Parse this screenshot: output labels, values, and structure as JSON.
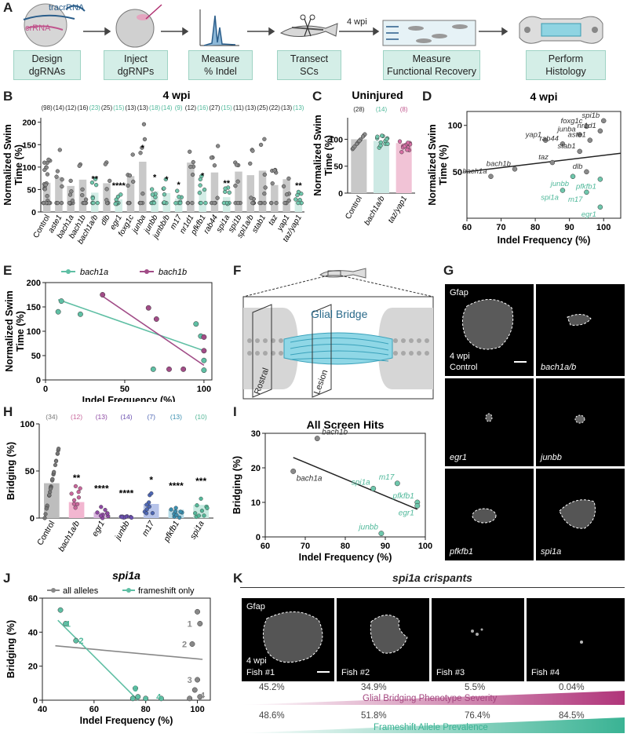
{
  "panel_letters": [
    "A",
    "B",
    "C",
    "D",
    "E",
    "F",
    "G",
    "H",
    "I",
    "J",
    "K"
  ],
  "panelA": {
    "steps": [
      {
        "label": "Design\ndgRNAs"
      },
      {
        "label": "Inject\ndgRNPs"
      },
      {
        "label": "Measure\n% Indel"
      },
      {
        "label": "Transect\nSCs"
      },
      {
        "label": "Measure\nFunctional Recovery"
      },
      {
        "label": "Perform\nHistology"
      }
    ],
    "tracr_label": "tracrRNA",
    "crrna_label": "crRNA",
    "wpi_label": "4 wpi"
  },
  "chart_data": [
    {
      "id": "B",
      "type": "bar",
      "title": "4 wpi",
      "ylabel": "Normalized Swim\nTime (%)",
      "ylim": [
        0,
        210
      ],
      "yticks": [
        0,
        50,
        100,
        150,
        200
      ],
      "categories": [
        "Control",
        "aste1",
        "bach1a",
        "bach1b",
        "bach1a/b",
        "dlb",
        "egr1",
        "foxg1c",
        "junba",
        "junbb",
        "junbb/b",
        "m17",
        "nr1d1",
        "pfkfb1",
        "rab44",
        "spi1a",
        "spi1b",
        "spi1a/b",
        "stab1",
        "taz",
        "yap1",
        "taz/yap1"
      ],
      "values": [
        65,
        78,
        58,
        72,
        43,
        64,
        28,
        80,
        112,
        46,
        42,
        30,
        110,
        50,
        88,
        33,
        90,
        82,
        92,
        60,
        73,
        28
      ],
      "n": [
        "(98)",
        "(14)",
        "(12)",
        "(16)",
        "(23)",
        "(25)",
        "(15)",
        "(13)",
        "(13)",
        "(18)",
        "(14)",
        "(9)",
        "(12)",
        "(16)",
        "(27)",
        "(15)",
        "(11)",
        "(13)",
        "(25)",
        "(22)",
        "(13)",
        "(13)"
      ],
      "sig": [
        "",
        "",
        "",
        "",
        "**",
        "",
        "****",
        "",
        "*",
        "*",
        "*",
        "*",
        "",
        "*",
        "",
        "**",
        "",
        "",
        "",
        "",
        "",
        "**"
      ],
      "highlight": [
        false,
        false,
        false,
        false,
        true,
        false,
        true,
        false,
        false,
        true,
        true,
        true,
        false,
        true,
        false,
        true,
        false,
        false,
        false,
        false,
        false,
        true
      ]
    },
    {
      "id": "C",
      "type": "bar",
      "title": "Uninjured",
      "ylabel": "Normalized Swim\nTime (%)",
      "ylim": [
        0,
        140
      ],
      "yticks": [
        0,
        50,
        100
      ],
      "categories": [
        "Control",
        "bach1a/b",
        "taz/yap1"
      ],
      "values": [
        100,
        97,
        93
      ],
      "n": [
        "(28)",
        "(14)",
        "(8)"
      ],
      "colors": [
        "#c8c8c8",
        "#cde9e4",
        "#f1c3d6"
      ]
    },
    {
      "id": "D",
      "type": "scatter",
      "title": "4 wpi",
      "xlabel": "Indel Frequency (%)",
      "ylabel": "Normalized Swim\nTime (%)",
      "xlim": [
        60,
        105
      ],
      "ylim": [
        0,
        115
      ],
      "xticks": [
        60,
        70,
        80,
        90,
        100
      ],
      "yticks": [
        50,
        100
      ],
      "points": [
        {
          "label": "spi1b",
          "x": 100,
          "y": 105,
          "hit": false
        },
        {
          "label": "foxg1c",
          "x": 95,
          "y": 99,
          "hit": false
        },
        {
          "label": "nr1d1",
          "x": 99,
          "y": 94,
          "hit": false
        },
        {
          "label": "junba",
          "x": 93,
          "y": 90,
          "hit": false
        },
        {
          "label": "aste1",
          "x": 96,
          "y": 84,
          "hit": false
        },
        {
          "label": "yap1",
          "x": 83,
          "y": 84,
          "hit": false
        },
        {
          "label": "rab44",
          "x": 88,
          "y": 80,
          "hit": false
        },
        {
          "label": "stab1",
          "x": 93,
          "y": 72,
          "hit": false
        },
        {
          "label": "taz",
          "x": 85,
          "y": 60,
          "hit": false
        },
        {
          "label": "bach1b",
          "x": 74,
          "y": 53,
          "hit": false
        },
        {
          "label": "bach1a",
          "x": 67,
          "y": 45,
          "hit": false
        },
        {
          "label": "dlb",
          "x": 95,
          "y": 50,
          "hit": false
        },
        {
          "label": "junbb",
          "x": 91,
          "y": 45,
          "hit": true
        },
        {
          "label": "pfkfb1",
          "x": 99,
          "y": 42,
          "hit": true
        },
        {
          "label": "spi1a",
          "x": 88,
          "y": 30,
          "hit": true
        },
        {
          "label": "m17",
          "x": 95,
          "y": 28,
          "hit": true
        },
        {
          "label": "egr1",
          "x": 99,
          "y": 12,
          "hit": true
        }
      ],
      "fit": [
        [
          60,
          50
        ],
        [
          105,
          70
        ]
      ]
    },
    {
      "id": "E",
      "type": "scatter",
      "xlabel": "Indel Frequency (%)",
      "ylabel": "Normalized Swim\nTime (%)",
      "xlim": [
        0,
        105
      ],
      "ylim": [
        0,
        200
      ],
      "xticks": [
        0,
        50,
        100
      ],
      "yticks": [
        0,
        50,
        100,
        150,
        200
      ],
      "series": [
        {
          "name": "bach1a",
          "color": "#5fbfa4",
          "points": [
            [
              8,
              140
            ],
            [
              10,
              162
            ],
            [
              22,
              135
            ],
            [
              68,
              22
            ],
            [
              95,
              115
            ],
            [
              98,
              90
            ],
            [
              100,
              40
            ],
            [
              100,
              20
            ]
          ],
          "fit": [
            [
              8,
              165
            ],
            [
              100,
              60
            ]
          ]
        },
        {
          "name": "bach1b",
          "color": "#a14c87",
          "points": [
            [
              36,
              175
            ],
            [
              65,
              148
            ],
            [
              70,
              125
            ],
            [
              78,
              22
            ],
            [
              87,
              22
            ],
            [
              100,
              88
            ],
            [
              100,
              60
            ]
          ],
          "fit": [
            [
              36,
              172
            ],
            [
              100,
              30
            ]
          ]
        }
      ]
    },
    {
      "id": "H",
      "type": "bar",
      "ylabel": "Bridging (%)",
      "ylim": [
        0,
        100
      ],
      "yticks": [
        0,
        50,
        100
      ],
      "categories": [
        "Control",
        "bach1a/b",
        "egr1",
        "junbb",
        "m17",
        "pfkfb1",
        "spi1a"
      ],
      "values": [
        37,
        17,
        6,
        1,
        15,
        9,
        14
      ],
      "n": [
        "(34)",
        "(12)",
        "(13)",
        "(14)",
        "(7)",
        "(13)",
        "(10)"
      ],
      "sig": [
        "",
        "**",
        "****",
        "****",
        "*",
        "****",
        "***"
      ],
      "colors": [
        "#bdbdbd",
        "#f2b6d0",
        "#d8b4de",
        "#c4c2e6",
        "#b7c4ea",
        "#b5dce8",
        "#c7ebe1"
      ],
      "dots": [
        "#777",
        "#c8669b",
        "#8e4aa3",
        "#6a4fb0",
        "#4e67b4",
        "#3a8fb0",
        "#54b798"
      ]
    },
    {
      "id": "I",
      "type": "scatter",
      "title": "All Screen Hits",
      "xlabel": "Indel Frequency (%)",
      "ylabel": "Bridging (%)",
      "xlim": [
        60,
        100
      ],
      "ylim": [
        0,
        30
      ],
      "xticks": [
        60,
        70,
        80,
        90,
        100
      ],
      "yticks": [
        0,
        10,
        20,
        30
      ],
      "points": [
        {
          "label": "bach1b",
          "x": 73,
          "y": 28.5,
          "hit": false
        },
        {
          "label": "bach1a",
          "x": 67,
          "y": 19,
          "hit": false
        },
        {
          "label": "spi1a",
          "x": 87,
          "y": 14,
          "hit": true
        },
        {
          "label": "m17",
          "x": 93,
          "y": 15.5,
          "hit": true
        },
        {
          "label": "pfkfb1",
          "x": 98,
          "y": 10,
          "hit": true
        },
        {
          "label": "egr1",
          "x": 98,
          "y": 9,
          "hit": true
        },
        {
          "label": "junbb",
          "x": 89,
          "y": 1,
          "hit": true
        }
      ],
      "fit": [
        [
          67,
          23
        ],
        [
          98,
          8
        ]
      ]
    },
    {
      "id": "J",
      "type": "scatter",
      "title": "spi1a",
      "xlabel": "Indel Frequency (%)",
      "ylabel": "Bridging (%)",
      "xlim": [
        40,
        105
      ],
      "ylim": [
        0,
        60
      ],
      "xticks": [
        40,
        60,
        80,
        100
      ],
      "yticks": [
        0,
        20,
        40,
        60
      ],
      "series": [
        {
          "name": "all alleles",
          "color": "#888",
          "points": [
            [
              100,
              52
            ],
            [
              101,
              45
            ],
            [
              98,
              33
            ],
            [
              100,
              12
            ],
            [
              99,
              6
            ],
            [
              101,
              2
            ],
            [
              97,
              1
            ]
          ],
          "fit": [
            [
              45,
              32
            ],
            [
              102,
              24
            ]
          ]
        },
        {
          "name": "frameshift only",
          "color": "#5fbfa4",
          "points": [
            [
              47,
              53
            ],
            [
              49,
              45
            ],
            [
              53,
              35
            ],
            [
              75,
              1
            ],
            [
              76,
              7
            ],
            [
              77,
              2
            ],
            [
              80,
              1
            ],
            [
              86,
              1
            ]
          ],
          "fit": [
            [
              46,
              47
            ],
            [
              77,
              0
            ]
          ]
        }
      ],
      "labels": [
        {
          "t": "1",
          "x": 50,
          "y": 45,
          "s": 1
        },
        {
          "t": "2",
          "x": 55,
          "y": 35,
          "s": 1
        },
        {
          "t": "3",
          "x": 76,
          "y": 7,
          "s": 1
        },
        {
          "t": "4",
          "x": 85,
          "y": 2,
          "s": 1
        },
        {
          "t": "1",
          "x": 97,
          "y": 45,
          "s": 0
        },
        {
          "t": "2",
          "x": 95,
          "y": 33,
          "s": 0
        },
        {
          "t": "3",
          "x": 97,
          "y": 12,
          "s": 0
        },
        {
          "t": "4",
          "x": 102,
          "y": 3,
          "s": 0
        }
      ]
    }
  ],
  "panelF": {
    "bridge": "Glial Bridge",
    "rostral": "Rostral",
    "lesion": "Lesion"
  },
  "panelG": {
    "marker": "Gfap",
    "timepoint": "4 wpi",
    "tiles": [
      "Control",
      "bach1a/b",
      "egr1",
      "junbb",
      "pfkfb1",
      "spi1a"
    ]
  },
  "panelK": {
    "title": "spi1a crispants",
    "marker": "Gfap",
    "timepoint": "4 wpi",
    "tiles": [
      "Fish #1",
      "Fish #2",
      "Fish #3",
      "Fish #4"
    ],
    "severity": [
      "45.2%",
      "34.9%",
      "5.5%",
      "0.04%"
    ],
    "severity_label": "Glial Bridging Phenotype Severity",
    "frameshift": [
      "48.6%",
      "51.8%",
      "76.4%",
      "84.5%"
    ],
    "frameshift_label": "Frameshift Allele Prevalence"
  }
}
